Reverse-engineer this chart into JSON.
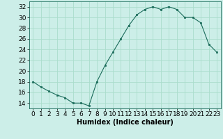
{
  "x": [
    0,
    1,
    2,
    3,
    4,
    5,
    6,
    7,
    8,
    9,
    10,
    11,
    12,
    13,
    14,
    15,
    16,
    17,
    18,
    19,
    20,
    21,
    22,
    23
  ],
  "y": [
    18,
    17,
    16.2,
    15.5,
    15,
    14,
    14,
    13.5,
    18,
    21,
    23.5,
    26,
    28.5,
    30.5,
    31.5,
    32,
    31.5,
    32,
    31.5,
    30,
    30,
    29,
    25,
    23.5
  ],
  "line_color": "#1a6b5a",
  "marker_color": "#1a6b5a",
  "bg_color": "#cceee8",
  "grid_color": "#aaddcc",
  "xlabel": "Humidex (Indice chaleur)",
  "ylim": [
    13,
    33
  ],
  "xlim": [
    -0.5,
    23.5
  ],
  "yticks": [
    14,
    16,
    18,
    20,
    22,
    24,
    26,
    28,
    30,
    32
  ],
  "xticks": [
    0,
    1,
    2,
    3,
    4,
    5,
    6,
    7,
    8,
    9,
    10,
    11,
    12,
    13,
    14,
    15,
    16,
    17,
    18,
    19,
    20,
    21,
    22,
    23
  ],
  "xlabel_fontsize": 7,
  "tick_fontsize": 6.5
}
